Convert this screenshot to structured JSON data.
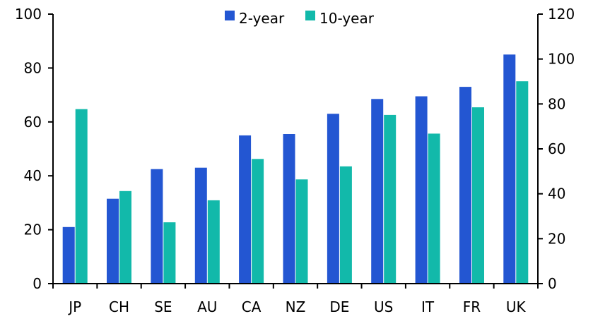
{
  "chart_data": {
    "type": "bar",
    "categories": [
      "JP",
      "CH",
      "SE",
      "AU",
      "CA",
      "NZ",
      "DE",
      "US",
      "IT",
      "FR",
      "UK"
    ],
    "series": [
      {
        "name": "2-year",
        "axis": "left",
        "color": "#2356D2",
        "values": [
          21,
          31.5,
          42.5,
          43,
          55,
          55.5,
          63,
          68.5,
          69.5,
          73,
          85
        ]
      },
      {
        "name": "10-year",
        "axis": "right",
        "color": "#12B9AA",
        "values": [
          77.7,
          41.2,
          27.3,
          37.1,
          55.5,
          46.4,
          52.2,
          75.1,
          66.8,
          78.5,
          90.1
        ]
      }
    ],
    "y_left": {
      "range": [
        0,
        100
      ],
      "ticks": [
        "0",
        "20",
        "40",
        "60",
        "80",
        "100"
      ]
    },
    "y_right": {
      "range": [
        0,
        120
      ],
      "ticks": [
        "0",
        "20",
        "40",
        "60",
        "80",
        "100",
        "120"
      ]
    },
    "legend": {
      "placement": "top-center"
    },
    "grid": false,
    "title": "",
    "xlabel": "",
    "ylabel": ""
  }
}
